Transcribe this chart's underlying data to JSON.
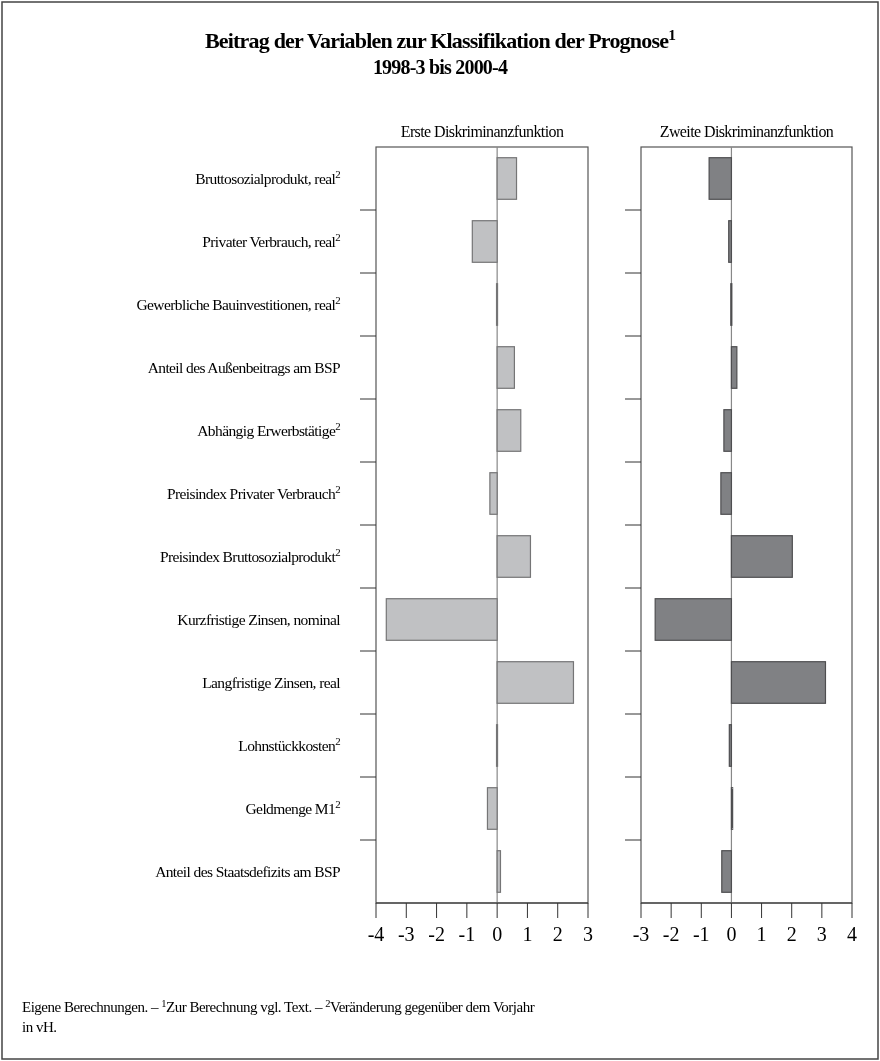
{
  "chart_data": [
    {
      "type": "other",
      "title": "Beitrag der Variablen zur Klassifikation der Prognose$^{1}$",
      "subtitle": "1998-3 bis 2000-4",
      "annotations": [
        "Eigene Berechnungen. – $^{1}$Zur Berechnung vgl. Text. – $^{2}$Veränderung gegenüber dem Vorjahr in vH."
      ]
    },
    {
      "type": "bar",
      "orientation": "horizontal",
      "title": "Erste Diskriminanzfunktion",
      "categories": [
        "Bruttosozialprodukt, real$^{2}$",
        "Privater Verbrauch, real$^{2}$",
        "Gewerbliche Bauinvestitionen, real$^{2}$",
        "Anteil des Außenbeitrags am BSP",
        "Abhängig Erwerbstätige$^{2}$",
        "Preisindex Privater Verbrauch$^{2}$",
        "Preisindex Bruttosozialprodukt$^{2}$",
        "Kurzfristige Zinsen, nominal",
        "Langfristige Zinsen, real",
        "Lohnstückkosten$^{2}$",
        "Geldmenge M1$^{2}$",
        "Anteil des Staatsdefizits am BSP"
      ],
      "values": [
        0.64,
        -0.82,
        -0.02,
        0.57,
        0.78,
        -0.24,
        1.1,
        -3.66,
        2.52,
        -0.02,
        -0.32,
        0.11
      ],
      "color": "#c0c1c3",
      "xlim": [
        -4,
        3
      ],
      "xticks": [
        -4,
        -3,
        -2,
        -1,
        0,
        1,
        2,
        3
      ],
      "ref_lines": [
        {
          "axis": "x",
          "value": 0
        }
      ]
    },
    {
      "type": "bar",
      "orientation": "horizontal",
      "title": "Zweite Diskriminanzfunktion",
      "categories": [
        null,
        null,
        null,
        null,
        null,
        null,
        null,
        null,
        null,
        null,
        null,
        null
      ],
      "values": [
        -0.74,
        -0.09,
        -0.02,
        0.18,
        -0.25,
        -0.35,
        2.02,
        -2.53,
        3.12,
        -0.07,
        0.04,
        -0.32
      ],
      "color": "#808184",
      "xlim": [
        -3,
        4
      ],
      "xticks": [
        -3,
        -2,
        -1,
        0,
        1,
        2,
        3,
        4
      ],
      "ref_lines": [
        {
          "axis": "x",
          "value": 0
        }
      ],
      "tick_labels": "x"
    }
  ]
}
